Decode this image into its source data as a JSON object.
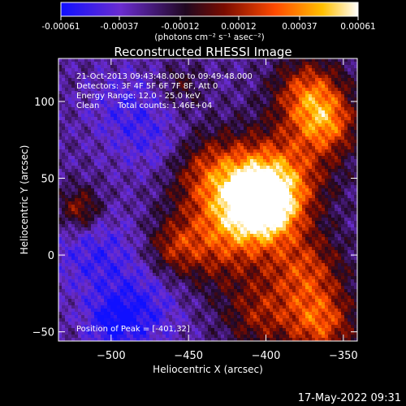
{
  "colorbar": {
    "tick_labels": [
      "-0.00061",
      "-0.00037",
      "-0.00012",
      "0.00012",
      "0.00037",
      "0.00061"
    ],
    "tick_values": [
      -0.00061,
      -0.00037,
      -0.00012,
      0.00012,
      0.00037,
      0.00061
    ],
    "range": [
      -0.00061,
      0.00061
    ],
    "units_label": "(photons cm⁻² s⁻¹ asec⁻²)",
    "colors": [
      "#1010ff",
      "#6a2cd0",
      "#2a0a2a",
      "#8a0e00",
      "#ff4a00",
      "#ffc000",
      "#ffffff"
    ]
  },
  "chart_data": {
    "type": "heatmap",
    "title": "Reconstructed RHESSI Image",
    "xlabel": "Heliocentric X (arcsec)",
    "ylabel": "Heliocentric Y (arcsec)",
    "xlim": [
      -534,
      -341
    ],
    "ylim": [
      -56,
      128
    ],
    "x_ticks": [
      -500,
      -450,
      -400,
      -350
    ],
    "y_ticks": [
      -50,
      0,
      50,
      100
    ],
    "x_tick_labels": [
      "−500",
      "−450",
      "−400",
      "−350"
    ],
    "y_tick_labels": [
      "−50",
      "0",
      "50",
      "100"
    ],
    "peak": [
      -401,
      32
    ],
    "annotations": [
      "21-Oct-2013 09:43:48.000 to 09:49:48.000",
      "Detectors: 3F 4F 5F 6F 7F 8F, Att 0",
      "Energy Range: 12.0 - 25.0 keV",
      "Clean",
      "Total counts: 1.46E+04",
      "Position of Peak = [-401,32]"
    ]
  },
  "footer": {
    "timestamp": "17-May-2022 09:31"
  }
}
